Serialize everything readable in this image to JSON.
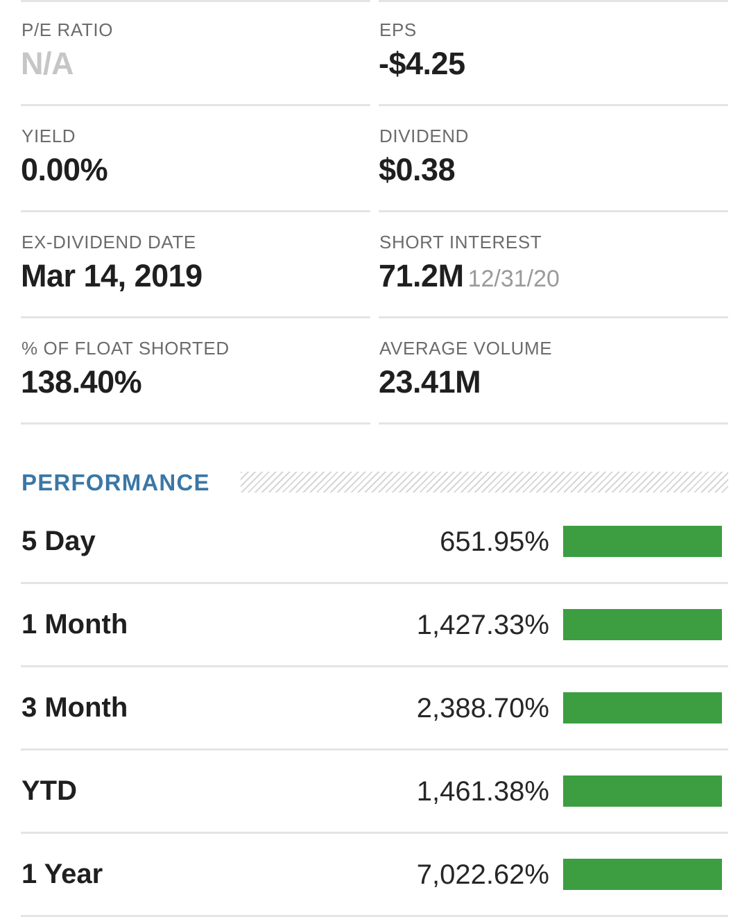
{
  "key_stats": [
    {
      "left": {
        "label": "P/E RATIO",
        "value": "N/A",
        "sub": ""
      },
      "right": {
        "label": "EPS",
        "value": "-$4.25",
        "sub": ""
      }
    },
    {
      "left": {
        "label": "YIELD",
        "value": "0.00%",
        "sub": ""
      },
      "right": {
        "label": "DIVIDEND",
        "value": "$0.38",
        "sub": ""
      }
    },
    {
      "left": {
        "label": "EX-DIVIDEND DATE",
        "value": "Mar 14, 2019",
        "sub": ""
      },
      "right": {
        "label": "SHORT INTEREST",
        "value": "71.2M",
        "sub": "12/31/20"
      }
    },
    {
      "left": {
        "label": "% OF FLOAT SHORTED",
        "value": "138.40%",
        "sub": ""
      },
      "right": {
        "label": "AVERAGE VOLUME",
        "value": "23.41M",
        "sub": ""
      }
    }
  ],
  "performance": {
    "title": "PERFORMANCE",
    "bar_color": "#3c9e41",
    "rows": [
      {
        "label": "5 Day",
        "value": "651.95%",
        "bar_fill": 1.0
      },
      {
        "label": "1 Month",
        "value": "1,427.33%",
        "bar_fill": 1.0
      },
      {
        "label": "3 Month",
        "value": "2,388.70%",
        "bar_fill": 1.0
      },
      {
        "label": "YTD",
        "value": "1,461.38%",
        "bar_fill": 1.0
      },
      {
        "label": "1 Year",
        "value": "7,022.62%",
        "bar_fill": 1.0
      }
    ]
  },
  "colors": {
    "accent": "#3a77a6",
    "muted_value": "#c6c6c6",
    "label": "#6b6b6b",
    "divider": "#e4e4e4"
  }
}
